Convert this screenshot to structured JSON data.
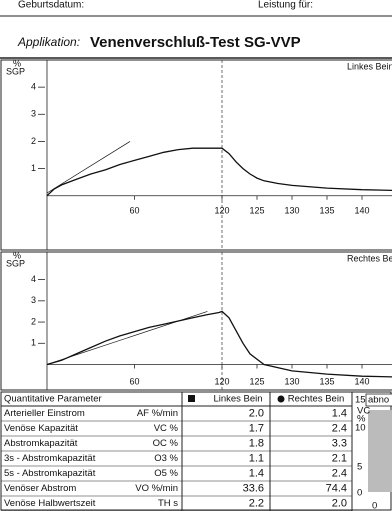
{
  "header": {
    "birth_label": "Geburtsdatum:",
    "service_label": "Leistung für:",
    "application_label": "Applikation:",
    "application": "Venenverschluß-Test SG-VVP"
  },
  "chart_data": [
    {
      "type": "line",
      "title": "Linkes Bein",
      "y_unit": "%",
      "y_label": "SGP",
      "xlim": [
        0,
        147
      ],
      "xbreak": 120,
      "xticks": [
        60,
        120,
        125,
        130,
        135,
        140
      ],
      "ylim": [
        -2,
        5
      ],
      "yticks": [
        1,
        2,
        3,
        4
      ],
      "color": "#111",
      "series": [
        {
          "x": [
            0,
            5,
            10,
            20,
            30,
            40,
            50,
            60,
            70,
            80,
            90,
            100,
            110,
            120,
            121,
            122,
            123,
            124,
            125,
            126,
            128,
            130,
            135,
            140,
            147
          ],
          "values": [
            0,
            0.25,
            0.4,
            0.6,
            0.8,
            0.95,
            1.15,
            1.3,
            1.45,
            1.6,
            1.7,
            1.75,
            1.75,
            1.75,
            1.55,
            1.25,
            1.0,
            0.8,
            0.65,
            0.55,
            0.45,
            0.38,
            0.28,
            0.22,
            0.18
          ]
        },
        {
          "x": [
            0,
            57
          ],
          "values": [
            0.1,
            2.0
          ]
        }
      ]
    },
    {
      "type": "line",
      "title": "Rechtes Bein",
      "y_unit": "%",
      "y_label": "SGP",
      "xlim": [
        0,
        147
      ],
      "xbreak": 120,
      "xticks": [
        60,
        120,
        125,
        130,
        135,
        140
      ],
      "ylim": [
        -1.2,
        5.3
      ],
      "yticks": [
        1,
        2,
        3,
        4
      ],
      "color": "#111",
      "series": [
        {
          "x": [
            0,
            5,
            10,
            20,
            30,
            40,
            50,
            60,
            70,
            80,
            90,
            100,
            110,
            118,
            120,
            121,
            122,
            123,
            124,
            126,
            130,
            135,
            140,
            147
          ],
          "values": [
            0,
            0.1,
            0.2,
            0.5,
            0.8,
            1.1,
            1.35,
            1.55,
            1.75,
            1.9,
            2.05,
            2.2,
            2.35,
            2.45,
            2.5,
            2.2,
            1.6,
            1.0,
            0.5,
            0.0,
            -0.3,
            -0.45,
            -0.55,
            -0.6
          ]
        },
        {
          "x": [
            0,
            110
          ],
          "values": [
            0,
            2.5
          ]
        }
      ]
    }
  ],
  "table": {
    "header": [
      "Quantitative Parameter",
      "Linkes Bein",
      "Rechtes Bein"
    ],
    "rows": [
      [
        "Arterieller Einstrom",
        "AF %/min",
        "2.0",
        "1.4"
      ],
      [
        "Venöse Kapazität",
        "VC %",
        "1.7",
        "2.4"
      ],
      [
        "Abstromkapazität",
        "OC %",
        "1.8",
        "3.3"
      ],
      [
        "3s - Abstromkapazität",
        "O3 %",
        "1.1",
        "2.1"
      ],
      [
        "5s - Abstromkapazität",
        "O5 %",
        "1.4",
        "2.4"
      ],
      [
        "Venöser Abstrom",
        "VO %/min",
        "33.6",
        "74.4"
      ],
      [
        "Venöse Halbwertszeit",
        "TH s",
        "2.2",
        "2.0"
      ]
    ]
  },
  "side_panel": {
    "label": "abno",
    "code": "VC",
    "unit": "%",
    "ticks": [
      "15",
      "10",
      "5",
      "0"
    ],
    "bottom": "0"
  }
}
